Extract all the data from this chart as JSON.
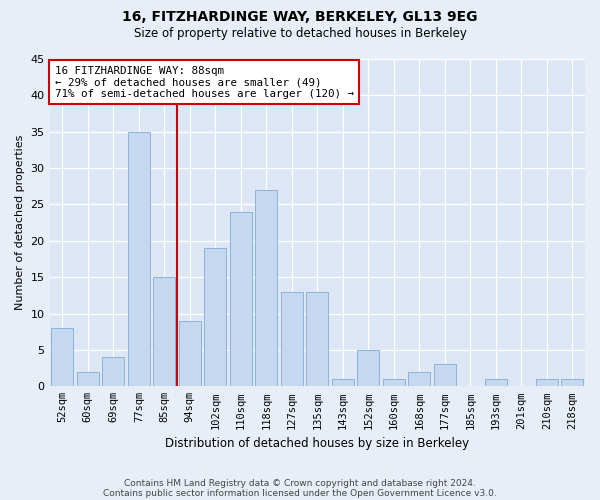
{
  "title1": "16, FITZHARDINGE WAY, BERKELEY, GL13 9EG",
  "title2": "Size of property relative to detached houses in Berkeley",
  "xlabel": "Distribution of detached houses by size in Berkeley",
  "ylabel": "Number of detached properties",
  "categories": [
    "52sqm",
    "60sqm",
    "69sqm",
    "77sqm",
    "85sqm",
    "94sqm",
    "102sqm",
    "110sqm",
    "118sqm",
    "127sqm",
    "135sqm",
    "143sqm",
    "152sqm",
    "160sqm",
    "168sqm",
    "177sqm",
    "185sqm",
    "193sqm",
    "201sqm",
    "210sqm",
    "218sqm"
  ],
  "values": [
    8,
    2,
    4,
    35,
    15,
    9,
    19,
    24,
    27,
    13,
    13,
    1,
    5,
    1,
    2,
    3,
    0,
    1,
    0,
    1,
    1
  ],
  "bar_color": "#c5d8f0",
  "bar_edge_color": "#8ab4d8",
  "vline_x": 4.5,
  "vline_color": "#cc0000",
  "annotation_text": "16 FITZHARDINGE WAY: 88sqm\n← 29% of detached houses are smaller (49)\n71% of semi-detached houses are larger (120) →",
  "annotation_box_color": "#ffffff",
  "annotation_box_edge": "#cc0000",
  "ylim": [
    0,
    45
  ],
  "yticks": [
    0,
    5,
    10,
    15,
    20,
    25,
    30,
    35,
    40,
    45
  ],
  "footer1": "Contains HM Land Registry data © Crown copyright and database right 2024.",
  "footer2": "Contains public sector information licensed under the Open Government Licence v3.0.",
  "bg_color": "#e8eef8",
  "plot_bg_color": "#dce6f5"
}
